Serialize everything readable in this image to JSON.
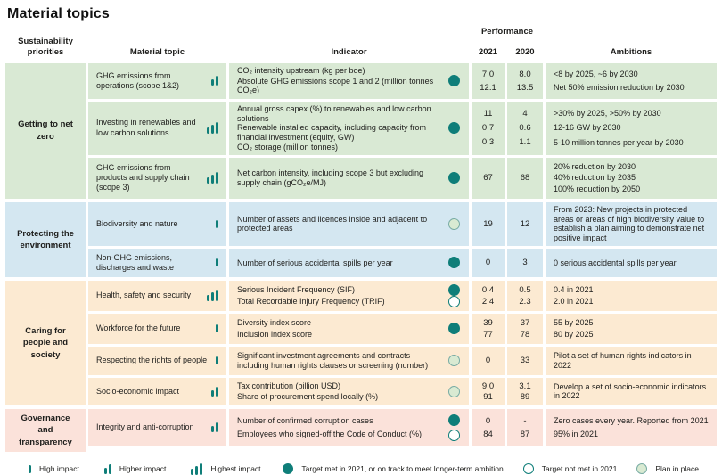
{
  "title": "Material topics",
  "header": {
    "priorities": "Sustainability priorities",
    "topic": "Material topic",
    "indicator": "Indicator",
    "performance": "Performance",
    "year1": "2021",
    "year2": "2020",
    "ambitions": "Ambitions"
  },
  "colors": {
    "teal_accent": "#0f7e79",
    "group_green": "#d9e9d4",
    "group_blue": "#d4e7f1",
    "group_peach": "#fcead2",
    "group_pink": "#fbe2da",
    "plan_circle_fill": "#d9ead2"
  },
  "groups": [
    {
      "name": "Getting to net zero",
      "theme": "green",
      "rows": [
        {
          "topic": "GHG emissions from operations (scope 1&2)",
          "impact": 2,
          "indicators": [
            "CO₂ intensity upstream (kg per boe)",
            "Absolute GHG emissions scope 1 and 2 (million tonnes CO₂e)"
          ],
          "statuses": [
            "met"
          ],
          "v2021": [
            "7.0",
            "12.1"
          ],
          "v2020": [
            "8.0",
            "13.5"
          ],
          "ambitions": [
            "<8 by 2025, ~6 by 2030",
            "Net 50% emission reduction by 2030"
          ],
          "min_height": 40
        },
        {
          "topic": "Investing in renewables and low carbon solutions",
          "impact": 3,
          "indicators": [
            "Annual gross capex (%) to renewables and low carbon solutions",
            "Renewable installed capacity, including capacity from financial investment (equity, GW)",
            "CO₂ storage (million tonnes)"
          ],
          "statuses": [
            "met"
          ],
          "v2021": [
            "11",
            "0.7",
            "0.3"
          ],
          "v2020": [
            "4",
            "0.6",
            "1.1"
          ],
          "ambitions": [
            ">30% by 2025, >50% by 2030",
            "12-16 GW by 2030",
            "5-10 million tonnes per year by 2030"
          ],
          "min_height": 58
        },
        {
          "topic": "GHG emissions from products and supply chain (scope 3)",
          "impact": 3,
          "indicators": [
            "Net carbon intensity, including scope 3 but excluding supply chain (gCO₂e/MJ)"
          ],
          "statuses": [
            "met"
          ],
          "v2021": [
            "67"
          ],
          "v2020": [
            "68"
          ],
          "ambitions": [
            "20% reduction by 2030",
            "40% reduction by 2035",
            "100% reduction by 2050"
          ],
          "min_height": 46
        }
      ]
    },
    {
      "name": "Protecting the environment",
      "theme": "blue",
      "rows": [
        {
          "topic": "Biodiversity and nature",
          "impact": 1,
          "indicators": [
            "Number of assets and licences inside and adjacent to protected areas"
          ],
          "statuses": [
            "plan"
          ],
          "v2021": [
            "19"
          ],
          "v2020": [
            "12"
          ],
          "ambitions": [
            "From 2023: New projects in protected areas or areas of high biodiversity value to establish a plan aiming to demonstrate net positive impact"
          ],
          "min_height": 48
        },
        {
          "topic": "Non-GHG emissions, discharges and waste",
          "impact": 1,
          "indicators": [
            "Number of serious accidental spills per year"
          ],
          "statuses": [
            "met"
          ],
          "v2021": [
            "0"
          ],
          "v2020": [
            "3"
          ],
          "ambitions": [
            "0 serious accidental spills per year"
          ],
          "min_height": 32
        }
      ]
    },
    {
      "name": "Caring for people and society",
      "theme": "peach",
      "rows": [
        {
          "topic": "Health, safety and security",
          "impact": 3,
          "indicators": [
            "Serious Incident Frequency (SIF)",
            "Total Recordable Injury Frequency (TRIF)"
          ],
          "statuses": [
            "met",
            "not_met"
          ],
          "v2021": [
            "0.4",
            "2.4"
          ],
          "v2020": [
            "0.5",
            "2.3"
          ],
          "ambitions": [
            "0.4 in 2021",
            "2.0 in 2021"
          ],
          "min_height": 34
        },
        {
          "topic": "Workforce for the future",
          "impact": 1,
          "indicators": [
            "Diversity index score",
            "Inclusion index score"
          ],
          "statuses": [
            "met"
          ],
          "v2021": [
            "39",
            "77"
          ],
          "v2020": [
            "37",
            "78"
          ],
          "ambitions": [
            "55 by 2025",
            "80 by 2025"
          ],
          "min_height": 34
        },
        {
          "topic": "Respecting the rights of people",
          "impact": 1,
          "indicators": [
            "Significant investment agreements and contracts including human rights clauses or screening (number)"
          ],
          "statuses": [
            "plan"
          ],
          "v2021": [
            "0"
          ],
          "v2020": [
            "33"
          ],
          "ambitions": [
            "Pilot a set of human rights indicators in 2022"
          ],
          "min_height": 32
        },
        {
          "topic": "Socio-economic impact",
          "impact": 2,
          "indicators": [
            "Tax contribution (billion USD)",
            "Share of procurement spend locally (%)"
          ],
          "statuses": [
            "plan"
          ],
          "v2021": [
            "9.0",
            "91"
          ],
          "v2020": [
            "3.1",
            "89"
          ],
          "ambitions": [
            "Develop a set of socio-economic indicators in 2022"
          ],
          "min_height": 31
        }
      ]
    },
    {
      "name": "Governance and transparency",
      "theme": "pink",
      "rows": [
        {
          "topic": "Integrity and anti-corruption",
          "impact": 2,
          "indicators": [
            "Number of confirmed corruption cases",
            "Employees who signed-off the Code of Conduct (%)"
          ],
          "statuses": [
            "met",
            "not_met"
          ],
          "v2021": [
            "0",
            "84"
          ],
          "v2020": [
            "-",
            "87"
          ],
          "ambitions": [
            "Zero cases every year. Reported from 2021",
            "95% in 2021"
          ],
          "min_height": 42
        }
      ]
    }
  ],
  "legend": {
    "impact": [
      {
        "bars": 1,
        "label": "High impact"
      },
      {
        "bars": 2,
        "label": "Higher impact"
      },
      {
        "bars": 3,
        "label": "Highest impact"
      }
    ],
    "status": [
      {
        "type": "met",
        "label": "Target met in 2021, or on track to meet longer-term ambition"
      },
      {
        "type": "not_met",
        "label": "Target not met in 2021"
      },
      {
        "type": "plan",
        "label": "Plan in place"
      }
    ]
  }
}
